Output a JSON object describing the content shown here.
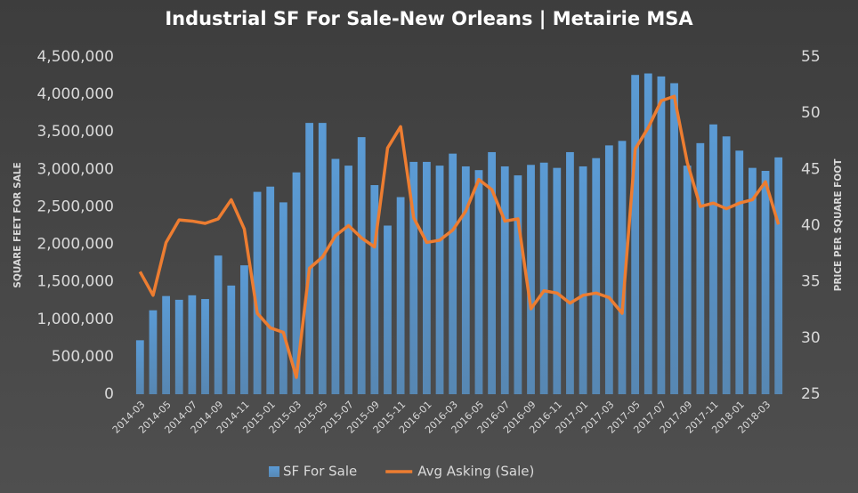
{
  "chart_data": {
    "type": "bar-line",
    "title": "Industrial SF For Sale-New Orleans | Metairie MSA",
    "y_label": "SQUARE FEET FOR SALE",
    "y2_label": "PRICE PER SQUARE FOOT",
    "categories": [
      "2014-03",
      null,
      "2014-05",
      null,
      "2014-07",
      null,
      "2014-09",
      null,
      "2014-11",
      null,
      "2015-01",
      null,
      "2015-03",
      null,
      "2015-05",
      null,
      "2015-07",
      null,
      "2015-09",
      null,
      "2015-11",
      null,
      "2016-01",
      null,
      "2016-03",
      null,
      "2016-05",
      null,
      "2016-07",
      null,
      "2016-09",
      null,
      "2016-11",
      null,
      "2017-01",
      null,
      "2017-03",
      null,
      "2017-05",
      null,
      "2017-07",
      null,
      "2017-09",
      null,
      "2017-11",
      null,
      "2018-01",
      null,
      "2018-03",
      null
    ],
    "series": [
      {
        "name": "SF For Sale",
        "type": "bar",
        "color": "#5b9bd5",
        "values": [
          720000,
          1120000,
          1310000,
          1260000,
          1320000,
          1270000,
          1850000,
          1450000,
          1720000,
          2700000,
          2770000,
          2560000,
          2960000,
          3620000,
          3620000,
          3140000,
          3050000,
          3430000,
          2790000,
          2250000,
          2630000,
          3100000,
          3100000,
          3050000,
          3210000,
          3040000,
          2990000,
          3230000,
          3040000,
          2920000,
          3060000,
          3090000,
          3020000,
          3230000,
          3040000,
          3150000,
          3320000,
          3380000,
          4260000,
          4280000,
          4240000,
          4150000,
          3050000,
          3350000,
          3600000,
          3440000,
          3250000,
          3020000,
          2980000,
          3160000
        ]
      },
      {
        "name": "Avg Asking (Sale)",
        "type": "line",
        "axis": "y2",
        "color": "#ed7d31",
        "values": [
          35.9,
          33.8,
          38.5,
          40.5,
          40.4,
          40.2,
          40.6,
          42.3,
          39.7,
          32.2,
          30.9,
          30.5,
          26.5,
          36.2,
          37.2,
          39.1,
          40.0,
          38.9,
          38.1,
          46.9,
          48.8,
          40.7,
          38.5,
          38.7,
          39.6,
          41.3,
          44.1,
          43.2,
          40.4,
          40.6,
          32.6,
          34.2,
          34.0,
          33.1,
          33.8,
          34.0,
          33.6,
          32.2,
          46.8,
          48.7,
          51.1,
          51.5,
          45.6,
          41.7,
          42.0,
          41.5,
          42.0,
          42.3,
          43.9,
          40.1
        ]
      }
    ],
    "ylim": [
      0,
      4500000
    ],
    "yticks": [
      0,
      {
        "value": 500000,
        "label": "500,000"
      },
      {
        "value": 1000000,
        "label": "1,000,000"
      },
      {
        "value": 1500000,
        "label": "1,500,000"
      },
      {
        "value": 2000000,
        "label": "2,000,000"
      },
      {
        "value": 2500000,
        "label": "2,500,000"
      },
      {
        "value": 3000000,
        "label": "3,000,000"
      },
      {
        "value": 3500000,
        "label": "3,500,000"
      },
      {
        "value": 4000000,
        "label": "4,000,000"
      },
      {
        "value": 4500000,
        "label": "4,500,000"
      }
    ],
    "y2lim": [
      25,
      55
    ],
    "y2ticks": [
      25,
      30,
      35,
      40,
      45,
      50,
      55
    ],
    "grid": false,
    "legend": "bottom"
  }
}
